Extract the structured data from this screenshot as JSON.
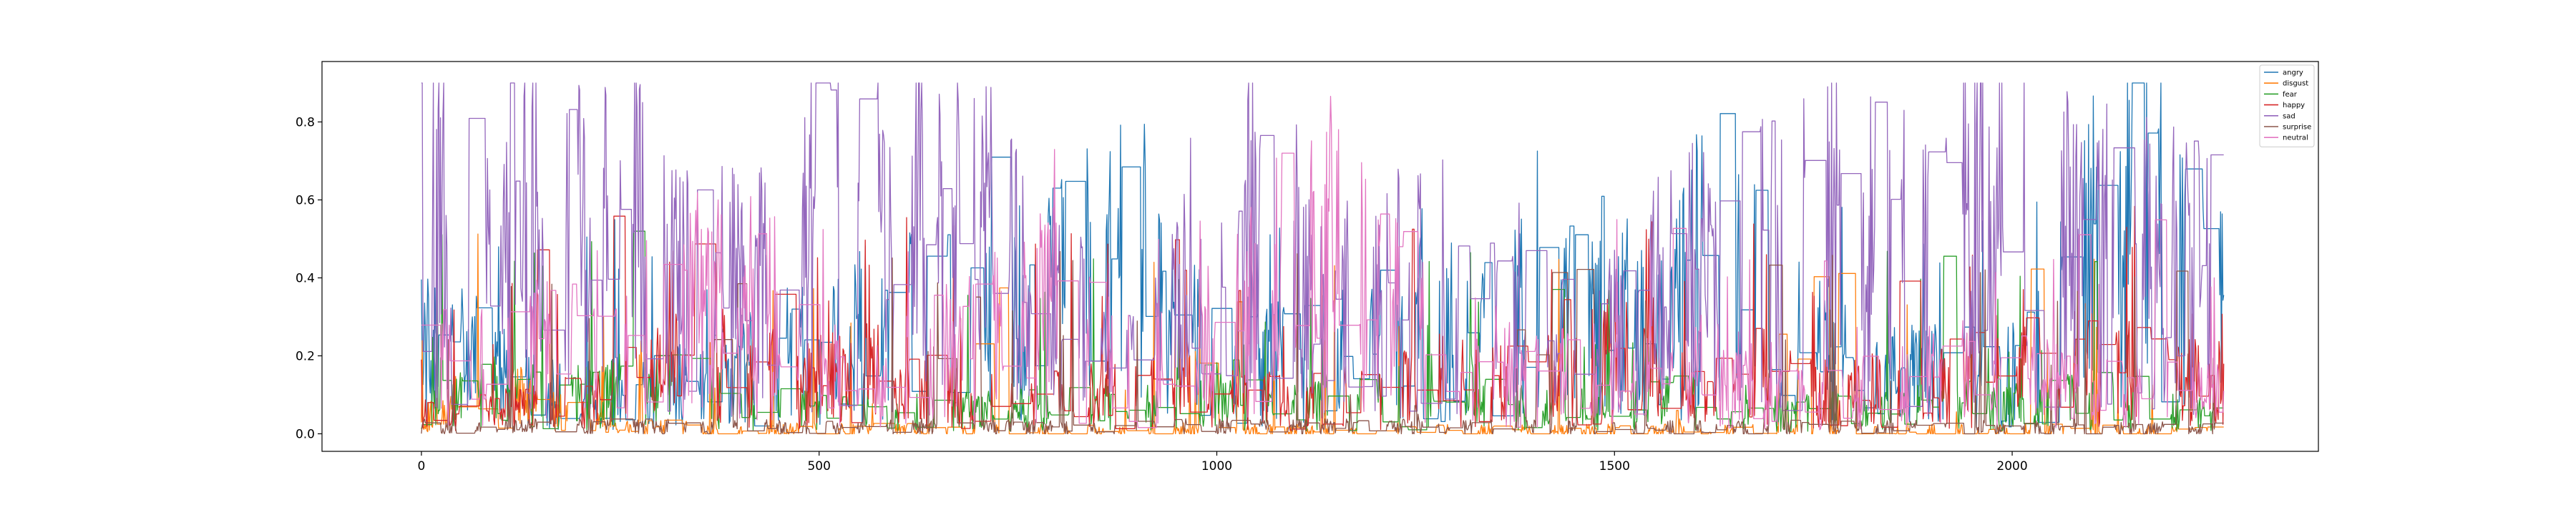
{
  "chart_data": {
    "type": "line",
    "title": "",
    "xlabel": "",
    "ylabel": "",
    "xlim": [
      -125,
      2385
    ],
    "ylim": [
      -0.045,
      0.955
    ],
    "xticks": [
      0,
      500,
      1000,
      1500,
      2000
    ],
    "xtick_labels": [
      "0",
      "500",
      "1000",
      "1500",
      "2000"
    ],
    "yticks": [
      0.0,
      0.2,
      0.4,
      0.6,
      0.8
    ],
    "ytick_labels": [
      "0.0",
      "0.2",
      "0.4",
      "0.6",
      "0.8"
    ],
    "grid": false,
    "legend_position": "top-right",
    "n_points": 2267,
    "series": [
      {
        "name": "angry",
        "color": "#1f77b4",
        "knots": [
          [
            0,
            0.22
          ],
          [
            60,
            0.2
          ],
          [
            120,
            0.12
          ],
          [
            200,
            0.1
          ],
          [
            300,
            0.12
          ],
          [
            400,
            0.16
          ],
          [
            460,
            0.2
          ],
          [
            520,
            0.22
          ],
          [
            600,
            0.3
          ],
          [
            700,
            0.25
          ],
          [
            800,
            0.35
          ],
          [
            880,
            0.45
          ],
          [
            950,
            0.25
          ],
          [
            1000,
            0.2
          ],
          [
            1100,
            0.18
          ],
          [
            1200,
            0.22
          ],
          [
            1300,
            0.3
          ],
          [
            1400,
            0.3
          ],
          [
            1500,
            0.28
          ],
          [
            1560,
            0.25
          ],
          [
            1620,
            0.45
          ],
          [
            1660,
            0.6
          ],
          [
            1700,
            0.35
          ],
          [
            1760,
            0.22
          ],
          [
            1820,
            0.15
          ],
          [
            1900,
            0.15
          ],
          [
            1980,
            0.12
          ],
          [
            2050,
            0.25
          ],
          [
            2100,
            0.45
          ],
          [
            2150,
            0.6
          ],
          [
            2200,
            0.55
          ],
          [
            2267,
            0.35
          ]
        ]
      },
      {
        "name": "disgust",
        "color": "#ff7f0e",
        "knots": [
          [
            0,
            0.03
          ],
          [
            40,
            0.08
          ],
          [
            80,
            0.12
          ],
          [
            120,
            0.1
          ],
          [
            160,
            0.06
          ],
          [
            250,
            0.02
          ],
          [
            400,
            0.01
          ],
          [
            800,
            0.005
          ],
          [
            1500,
            0.005
          ],
          [
            2000,
            0.005
          ],
          [
            2267,
            0.005
          ]
        ]
      },
      {
        "name": "fear",
        "color": "#2ca02c",
        "knots": [
          [
            0,
            0.1
          ],
          [
            100,
            0.12
          ],
          [
            200,
            0.1
          ],
          [
            300,
            0.12
          ],
          [
            400,
            0.08
          ],
          [
            500,
            0.06
          ],
          [
            700,
            0.06
          ],
          [
            900,
            0.08
          ],
          [
            1000,
            0.1
          ],
          [
            1100,
            0.07
          ],
          [
            1200,
            0.08
          ],
          [
            1300,
            0.12
          ],
          [
            1400,
            0.06
          ],
          [
            1500,
            0.08
          ],
          [
            1600,
            0.08
          ],
          [
            1700,
            0.06
          ],
          [
            1800,
            0.06
          ],
          [
            1900,
            0.08
          ],
          [
            2000,
            0.07
          ],
          [
            2100,
            0.1
          ],
          [
            2200,
            0.06
          ],
          [
            2267,
            0.04
          ]
        ]
      },
      {
        "name": "happy",
        "color": "#d62728",
        "knots": [
          [
            0,
            0.05
          ],
          [
            100,
            0.06
          ],
          [
            200,
            0.08
          ],
          [
            300,
            0.15
          ],
          [
            360,
            0.22
          ],
          [
            400,
            0.16
          ],
          [
            500,
            0.12
          ],
          [
            560,
            0.15
          ],
          [
            650,
            0.1
          ],
          [
            750,
            0.08
          ],
          [
            850,
            0.1
          ],
          [
            950,
            0.12
          ],
          [
            1000,
            0.1
          ],
          [
            1100,
            0.08
          ],
          [
            1200,
            0.1
          ],
          [
            1300,
            0.15
          ],
          [
            1400,
            0.12
          ],
          [
            1500,
            0.2
          ],
          [
            1560,
            0.12
          ],
          [
            1650,
            0.1
          ],
          [
            1750,
            0.1
          ],
          [
            1850,
            0.12
          ],
          [
            1950,
            0.14
          ],
          [
            2020,
            0.2
          ],
          [
            2100,
            0.18
          ],
          [
            2200,
            0.12
          ],
          [
            2267,
            0.15
          ]
        ]
      },
      {
        "name": "sad",
        "color": "#9467bd",
        "knots": [
          [
            0,
            0.55
          ],
          [
            50,
            0.5
          ],
          [
            100,
            0.55
          ],
          [
            200,
            0.5
          ],
          [
            260,
            0.55
          ],
          [
            300,
            0.4
          ],
          [
            400,
            0.35
          ],
          [
            480,
            0.5
          ],
          [
            550,
            0.55
          ],
          [
            620,
            0.55
          ],
          [
            700,
            0.5
          ],
          [
            800,
            0.3
          ],
          [
            900,
            0.2
          ],
          [
            1000,
            0.45
          ],
          [
            1050,
            0.5
          ],
          [
            1100,
            0.35
          ],
          [
            1200,
            0.3
          ],
          [
            1260,
            0.45
          ],
          [
            1300,
            0.4
          ],
          [
            1350,
            0.25
          ],
          [
            1400,
            0.3
          ],
          [
            1500,
            0.25
          ],
          [
            1580,
            0.4
          ],
          [
            1650,
            0.45
          ],
          [
            1720,
            0.45
          ],
          [
            1780,
            0.5
          ],
          [
            1850,
            0.45
          ],
          [
            1900,
            0.55
          ],
          [
            1960,
            0.6
          ],
          [
            2020,
            0.55
          ],
          [
            2100,
            0.45
          ],
          [
            2150,
            0.45
          ],
          [
            2200,
            0.5
          ],
          [
            2267,
            0.35
          ]
        ]
      },
      {
        "name": "surprise",
        "color": "#8c564b",
        "knots": [
          [
            0,
            0.02
          ],
          [
            200,
            0.02
          ],
          [
            500,
            0.015
          ],
          [
            1000,
            0.02
          ],
          [
            1500,
            0.015
          ],
          [
            2000,
            0.015
          ],
          [
            2267,
            0.01
          ]
        ]
      },
      {
        "name": "neutral",
        "color": "#e377c2",
        "knots": [
          [
            0,
            0.15
          ],
          [
            100,
            0.18
          ],
          [
            200,
            0.25
          ],
          [
            300,
            0.3
          ],
          [
            400,
            0.35
          ],
          [
            500,
            0.15
          ],
          [
            600,
            0.15
          ],
          [
            700,
            0.25
          ],
          [
            800,
            0.3
          ],
          [
            850,
            0.2
          ],
          [
            900,
            0.15
          ],
          [
            1000,
            0.2
          ],
          [
            1050,
            0.35
          ],
          [
            1100,
            0.45
          ],
          [
            1150,
            0.5
          ],
          [
            1200,
            0.35
          ],
          [
            1250,
            0.25
          ],
          [
            1300,
            0.2
          ],
          [
            1400,
            0.15
          ],
          [
            1500,
            0.15
          ],
          [
            1600,
            0.15
          ],
          [
            1700,
            0.1
          ],
          [
            1800,
            0.1
          ],
          [
            1900,
            0.15
          ],
          [
            2000,
            0.15
          ],
          [
            2100,
            0.1
          ],
          [
            2200,
            0.1
          ],
          [
            2267,
            0.1
          ]
        ]
      }
    ]
  }
}
